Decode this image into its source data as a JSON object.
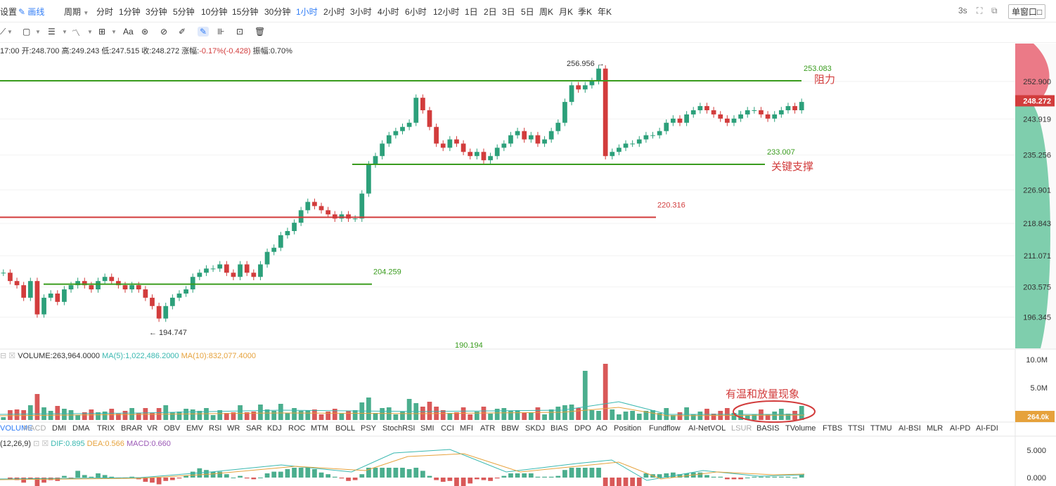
{
  "toolbar": {
    "settings_label": "设置",
    "draw_label": "画线",
    "period_label": "周期",
    "intervals": [
      "分时",
      "1分钟",
      "3分钟",
      "5分钟",
      "10分钟",
      "15分钟",
      "30分钟",
      "1小时",
      "2小时",
      "3小时",
      "4小时",
      "6小时",
      "12小时",
      "1日",
      "2日",
      "3日",
      "5日",
      "周K",
      "月K",
      "季K",
      "年K"
    ],
    "active_interval": "1小时",
    "refresh": "3s",
    "window_mode": "单窗口"
  },
  "drawtools": {
    "text_tool": "Aa"
  },
  "ohlc": {
    "time": "17:00",
    "open": "开:248.700",
    "high": "高:249.243",
    "low": "低:247.515",
    "close": "收:248.272",
    "change_label": "涨幅:",
    "change": "-0.17%(-0.428)",
    "amplitude": "振幅:0.70%"
  },
  "chart_data": {
    "type": "candlestick",
    "y_ticks": [
      "252.900",
      "243.919",
      "235.256",
      "226.901",
      "218.843",
      "211.071",
      "203.575",
      "196.345"
    ],
    "y_tick_values": [
      252.9,
      243.919,
      235.256,
      226.901,
      218.843,
      211.071,
      203.575,
      196.345
    ],
    "last_price": "248.272",
    "price_labels": {
      "high": "256.956",
      "low": "194.747",
      "bottom": "190.194"
    },
    "horizontal_levels": [
      {
        "price": 253.083,
        "label": "253.083",
        "note": "阻力",
        "color": "#3a9c1e"
      },
      {
        "price": 233.007,
        "label": "233.007",
        "note": "关键支撑",
        "color": "#3a9c1e"
      },
      {
        "price": 220.316,
        "label": "220.316",
        "note": "",
        "color": "#d23c3c"
      },
      {
        "price": 204.259,
        "label": "204.259",
        "note": "",
        "color": "#3a9c1e"
      }
    ],
    "closes": [
      207,
      205,
      204,
      201,
      205,
      197,
      201,
      202,
      200,
      203,
      204,
      205,
      204,
      203,
      205,
      206,
      205,
      204,
      203,
      204,
      203,
      201,
      199,
      196,
      199,
      201,
      202,
      203,
      206,
      207,
      208,
      208,
      209,
      207,
      206,
      209,
      207,
      206,
      209,
      212,
      213,
      216,
      217,
      219,
      222,
      224,
      223,
      222,
      221,
      220,
      221,
      220,
      220,
      226,
      233,
      235,
      238,
      240,
      241,
      242,
      243,
      249,
      246,
      242,
      238,
      237,
      239,
      238,
      236,
      235,
      236,
      234,
      235,
      237,
      238,
      240,
      241,
      239,
      240,
      238,
      239,
      241,
      243,
      248,
      252,
      251,
      252,
      253,
      256,
      235,
      236,
      237,
      238,
      238,
      239,
      240,
      240,
      241,
      243,
      244,
      243,
      245,
      246,
      247,
      246,
      245,
      244,
      243,
      244,
      245,
      246,
      246,
      245,
      244,
      245,
      246,
      247,
      246,
      248
    ],
    "volume": {
      "label": "VOLUME:263,964.0000",
      "ma5": "MA(5):1,022,486.2000",
      "ma10": "MA(10):832,077.4000",
      "y_ticks": [
        "10.0M",
        "5.0M"
      ],
      "current": "264.0k",
      "annotation": "有温和放量现象"
    },
    "macd": {
      "params": "(12,26,9)",
      "dif": "DIF:0.895",
      "dea": "DEA:0.566",
      "macd": "MACD:0.660",
      "y_ticks": [
        "5.000",
        "0.000"
      ]
    }
  },
  "indicator_tabs": [
    "VOLUME",
    "MACD",
    "DMI",
    "DMA",
    "TRIX",
    "BRAR",
    "VR",
    "OBV",
    "EMV",
    "RSI",
    "WR",
    "SAR",
    "KDJ",
    "ROC",
    "MTM",
    "BOLL",
    "PSY",
    "StochRSI",
    "SMI",
    "CCI",
    "MFI",
    "ATR",
    "BBW",
    "SKDJ",
    "BIAS",
    "DPO",
    "AO",
    "Position",
    "Fundflow",
    "AI-NetVOL",
    "LSUR",
    "BASIS",
    "TVolume",
    "FTBS",
    "TTSI",
    "TTMU",
    "AI-BSI",
    "MLR",
    "AI-PD",
    "AI-FDI"
  ],
  "colors": {
    "up": "#2ca07a",
    "down": "#d23c3c",
    "support": "#3a9c1e",
    "accent": "#2f7cf6"
  }
}
